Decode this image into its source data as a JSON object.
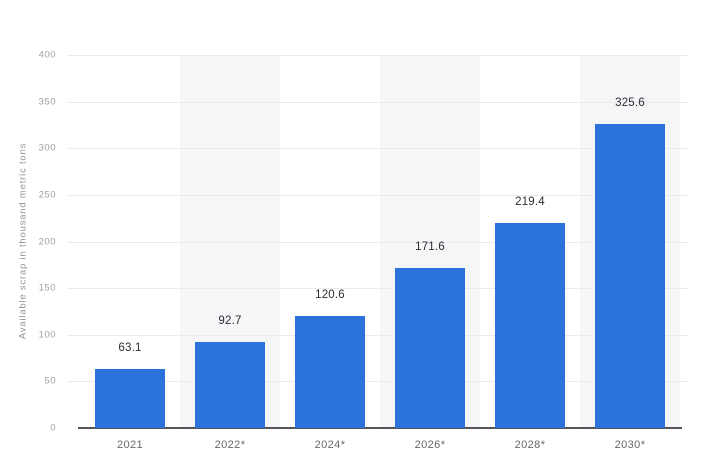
{
  "chart_data": {
    "type": "bar",
    "title": "",
    "xlabel": "",
    "ylabel": "Available scrap in thousand metric tons",
    "categories": [
      "2021",
      "2022*",
      "2024*",
      "2026*",
      "2028*",
      "2030*"
    ],
    "values": [
      63.1,
      92.7,
      120.6,
      171.6,
      219.4,
      325.6
    ],
    "value_labels": [
      "63.1",
      "92.7",
      "120.6",
      "171.6",
      "219.4",
      "325.6"
    ],
    "ylim": [
      0,
      400
    ],
    "yticks": [
      0,
      50,
      100,
      150,
      200,
      250,
      300,
      350,
      400
    ],
    "grid": "horizontal",
    "legend": "none",
    "plot_bands": "alternating vertical category bands, shaded behind 2022*, 2026* and 2030*",
    "colors": {
      "bar": "#2c72dc",
      "band": "#f5f6f8",
      "gridline": "#ebebee",
      "axis_line": "#55565b",
      "y_tick_text": "#9b9fa5",
      "x_tick_text": "#66696e",
      "value_label_text": "#2b2d30",
      "y_title_text": "#8f9398",
      "background": "#ffffff"
    }
  }
}
